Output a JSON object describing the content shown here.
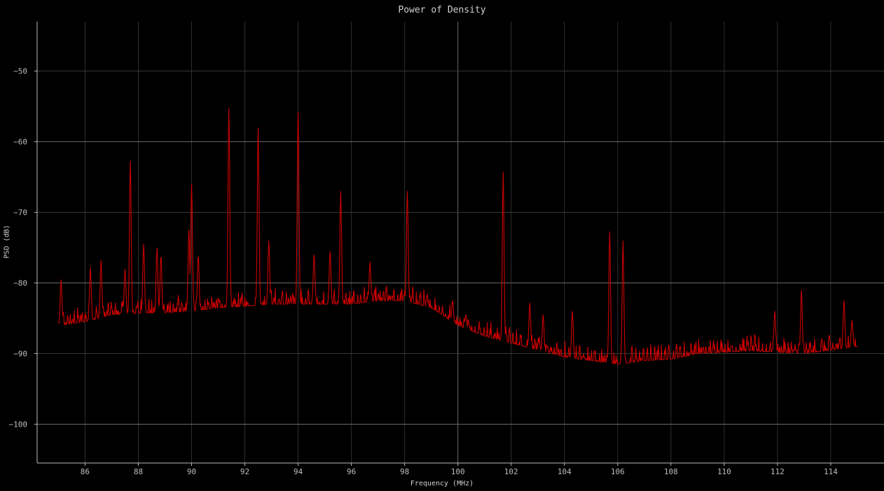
{
  "chart_data": {
    "type": "line",
    "title": "Power of Density",
    "xlabel": "Frequency (MHz)",
    "ylabel": "PSD (dB)",
    "xlim": [
      84.2,
      116.0
    ],
    "ylim": [
      -105.5,
      -43.0
    ],
    "xticks": [
      86,
      88,
      90,
      92,
      94,
      96,
      98,
      100,
      102,
      104,
      106,
      108,
      110,
      112,
      114
    ],
    "yticks": [
      -100,
      -90,
      -80,
      -70,
      -60,
      -50
    ],
    "grid": true,
    "series": [
      {
        "color": "#cc0000",
        "x_start": 85.0,
        "x_end": 115.0,
        "baseline": [
          [
            85.0,
            -86.0
          ],
          [
            86.0,
            -85.5
          ],
          [
            87.0,
            -84.5
          ],
          [
            88.0,
            -84.3
          ],
          [
            89.0,
            -84.2
          ],
          [
            90.0,
            -84.0
          ],
          [
            91.0,
            -83.5
          ],
          [
            92.0,
            -83.3
          ],
          [
            93.0,
            -83.0
          ],
          [
            94.0,
            -83.0
          ],
          [
            95.0,
            -83.0
          ],
          [
            96.0,
            -83.0
          ],
          [
            97.0,
            -82.5
          ],
          [
            98.0,
            -82.5
          ],
          [
            99.0,
            -83.5
          ],
          [
            100.0,
            -86.0
          ],
          [
            101.0,
            -87.5
          ],
          [
            102.0,
            -88.5
          ],
          [
            103.0,
            -89.5
          ],
          [
            104.0,
            -90.5
          ],
          [
            105.0,
            -91.0
          ],
          [
            106.0,
            -91.5
          ],
          [
            107.0,
            -91.0
          ],
          [
            108.0,
            -90.8
          ],
          [
            109.0,
            -90.0
          ],
          [
            110.0,
            -89.8
          ],
          [
            111.0,
            -89.6
          ],
          [
            112.0,
            -89.8
          ],
          [
            113.0,
            -90.0
          ],
          [
            114.0,
            -89.5
          ],
          [
            115.0,
            -89.0
          ]
        ],
        "peaks": [
          [
            85.1,
            -79.5
          ],
          [
            86.2,
            -77.8
          ],
          [
            86.6,
            -76.8
          ],
          [
            87.5,
            -78.0
          ],
          [
            87.7,
            -62.7
          ],
          [
            88.2,
            -74.5
          ],
          [
            88.7,
            -75.0
          ],
          [
            88.85,
            -76.0
          ],
          [
            89.9,
            -72.5
          ],
          [
            90.0,
            -66.0
          ],
          [
            90.25,
            -76.0
          ],
          [
            91.4,
            -55.2
          ],
          [
            92.5,
            -58.0
          ],
          [
            92.9,
            -74.0
          ],
          [
            94.0,
            -55.8
          ],
          [
            94.6,
            -76.0
          ],
          [
            95.2,
            -75.5
          ],
          [
            95.6,
            -67.0
          ],
          [
            96.7,
            -77.0
          ],
          [
            98.1,
            -67.0
          ],
          [
            99.8,
            -82.5
          ],
          [
            100.3,
            -84.5
          ],
          [
            101.7,
            -64.3
          ],
          [
            102.7,
            -82.8
          ],
          [
            103.2,
            -84.5
          ],
          [
            104.3,
            -84.0
          ],
          [
            105.7,
            -72.7
          ],
          [
            106.2,
            -74.0
          ],
          [
            111.9,
            -84.0
          ],
          [
            112.9,
            -81.0
          ],
          [
            114.5,
            -82.5
          ],
          [
            114.8,
            -85.3
          ]
        ]
      }
    ]
  }
}
